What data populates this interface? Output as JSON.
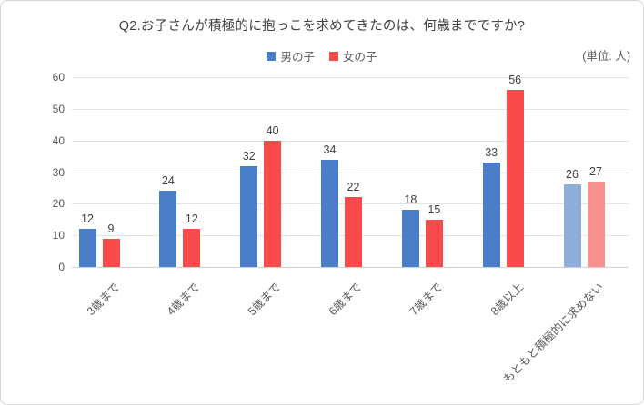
{
  "chart_data": {
    "type": "bar",
    "title": "Q2.お子さんが積極的に抱っこを求めてきたのは、何歳までですか?",
    "unit_label": "(単位: 人)",
    "categories": [
      "3歳まで",
      "4歳まで",
      "5歳まで",
      "6歳まで",
      "7歳まで",
      "8歳以上",
      "もともと積極的に求めない"
    ],
    "series": [
      {
        "name": "男の子",
        "values": [
          12,
          24,
          32,
          34,
          18,
          33,
          26
        ],
        "color": "#4a7ec8",
        "last_category_color": "#8fagreplace"
      },
      {
        "name": "女の子",
        "values": [
          9,
          12,
          40,
          22,
          15,
          56,
          27
        ],
        "color": "#f94b4b",
        "last_category_color": "#f99090"
      }
    ],
    "colors_note": "last category pair rendered in lighter shades",
    "series_light_colors": [
      "#8faedc",
      "#f99090"
    ],
    "ylim": [
      0,
      60
    ],
    "yticks": [
      0,
      10,
      20,
      30,
      40,
      50,
      60
    ],
    "grid": true,
    "legend_position": "top-center",
    "xlabel": "",
    "ylabel": ""
  }
}
